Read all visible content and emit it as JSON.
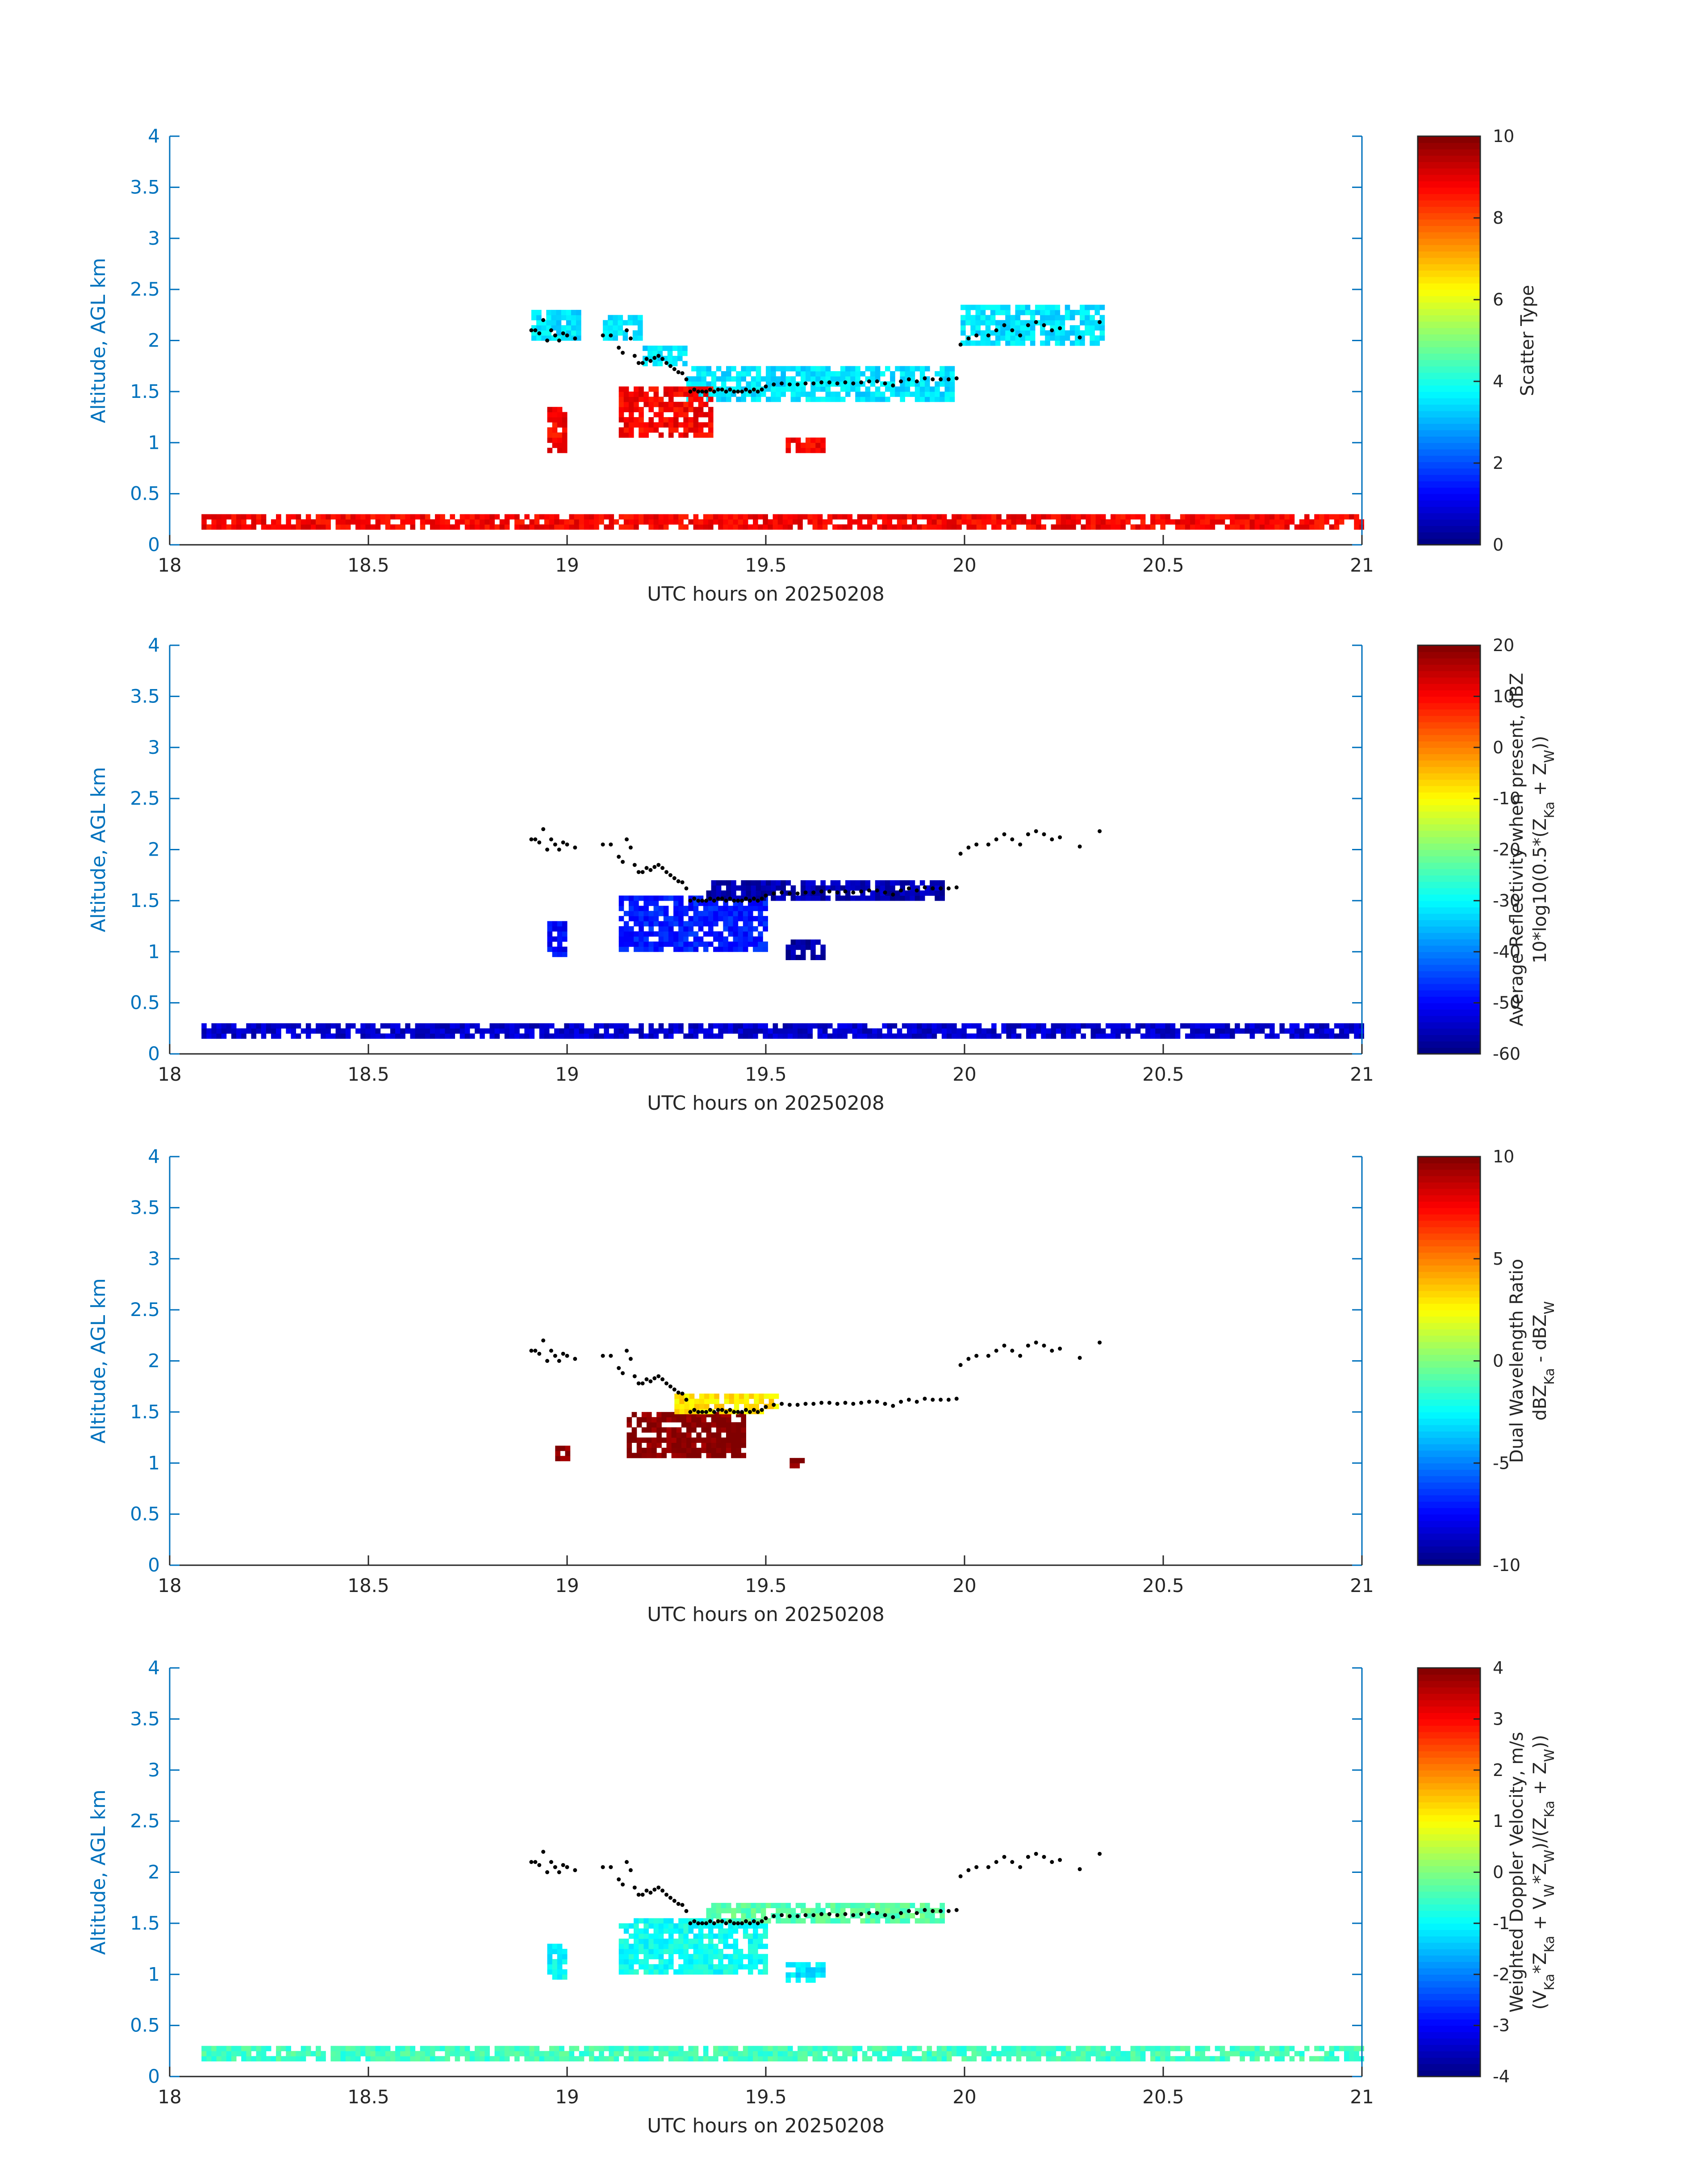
{
  "chart_data": [
    {
      "type": "heatmap",
      "title": "",
      "xlabel": "UTC hours on 20250208",
      "ylabel": "Altitude, AGL km",
      "xlim": [
        18,
        21
      ],
      "ylim": [
        0,
        4
      ],
      "xticks": [
        "18",
        "18.5",
        "19",
        "19.5",
        "20",
        "20.5",
        "21"
      ],
      "yticks": [
        "0",
        "0.5",
        "1",
        "1.5",
        "2",
        "2.5",
        "3",
        "3.5",
        "4"
      ],
      "colorbar": {
        "label_parts": [
          "Scatter Type"
        ],
        "range": [
          0,
          10
        ],
        "ticks": [
          "0",
          "2",
          "4",
          "6",
          "8",
          "10"
        ]
      },
      "colors": {
        "cloud": "#1ff2d6",
        "rain": "#ff4a00",
        "dots": "#000000"
      },
      "regions": [
        {
          "value": 3.5,
          "x_range": [
            18.91,
            19.03
          ],
          "y_range": [
            2.0,
            2.3
          ]
        },
        {
          "value": 3.5,
          "x_range": [
            19.09,
            19.19
          ],
          "y_range": [
            2.0,
            2.25
          ]
        },
        {
          "value": 3.5,
          "x_range": [
            19.19,
            19.3
          ],
          "y_range": [
            1.75,
            1.95
          ]
        },
        {
          "value": 3.5,
          "x_range": [
            19.3,
            19.97
          ],
          "y_range": [
            1.4,
            1.75
          ]
        },
        {
          "value": 3.5,
          "x_range": [
            19.99,
            20.35
          ],
          "y_range": [
            1.95,
            2.35
          ]
        },
        {
          "value": 8.8,
          "x_range": [
            18.95,
            19.0
          ],
          "y_range": [
            0.9,
            1.35
          ]
        },
        {
          "value": 8.8,
          "x_range": [
            19.13,
            19.36
          ],
          "y_range": [
            1.05,
            1.55
          ]
        },
        {
          "value": 8.8,
          "x_range": [
            19.55,
            19.65
          ],
          "y_range": [
            0.9,
            1.05
          ]
        },
        {
          "value": 8.8,
          "x_range": [
            18.08,
            21.0
          ],
          "y_range": [
            0.15,
            0.3
          ]
        }
      ]
    },
    {
      "type": "heatmap",
      "title": "",
      "xlabel": "UTC hours on 20250208",
      "ylabel": "Altitude, AGL km",
      "xlim": [
        18,
        21
      ],
      "ylim": [
        0,
        4
      ],
      "xticks": [
        "18",
        "18.5",
        "19",
        "19.5",
        "20",
        "20.5",
        "21"
      ],
      "yticks": [
        "0",
        "0.5",
        "1",
        "1.5",
        "2",
        "2.5",
        "3",
        "3.5",
        "4"
      ],
      "colorbar": {
        "label_parts": [
          "Average Reflectivity when present, dBZ",
          "10*log10(0.5*(Z",
          "Ka",
          " + Z",
          "W",
          "))"
        ],
        "range": [
          -60,
          20
        ],
        "ticks": [
          "-60",
          "-50",
          "-40",
          "-30",
          "-20",
          "-10",
          "0",
          "10",
          "20"
        ]
      },
      "regions": [
        {
          "value": -50,
          "x_range": [
            18.95,
            19.0
          ],
          "y_range": [
            0.95,
            1.3
          ]
        },
        {
          "value": -48,
          "x_range": [
            19.13,
            19.5
          ],
          "y_range": [
            1.0,
            1.55
          ]
        },
        {
          "value": -56,
          "x_range": [
            19.35,
            19.95
          ],
          "y_range": [
            1.5,
            1.7
          ]
        },
        {
          "value": -57,
          "x_range": [
            19.55,
            19.65
          ],
          "y_range": [
            0.92,
            1.1
          ]
        },
        {
          "value": -54,
          "x_range": [
            18.08,
            21.0
          ],
          "y_range": [
            0.15,
            0.3
          ]
        }
      ]
    },
    {
      "type": "heatmap",
      "title": "",
      "xlabel": "UTC hours on 20250208",
      "ylabel": "Altitude, AGL km",
      "xlim": [
        18,
        21
      ],
      "ylim": [
        0,
        4
      ],
      "xticks": [
        "18",
        "18.5",
        "19",
        "19.5",
        "20",
        "20.5",
        "21"
      ],
      "yticks": [
        "0",
        "0.5",
        "1",
        "1.5",
        "2",
        "2.5",
        "3",
        "3.5",
        "4"
      ],
      "colorbar": {
        "label_parts": [
          "Dual Wavelength Ratio",
          "dBZ",
          "Ka",
          " - dBZ",
          "W"
        ],
        "range": [
          -10,
          10
        ],
        "ticks": [
          "-10",
          "-5",
          "0",
          "5",
          "10"
        ]
      },
      "regions": [
        {
          "value": 10,
          "x_range": [
            19.15,
            19.44
          ],
          "y_range": [
            1.05,
            1.5
          ]
        },
        {
          "value": 3,
          "x_range": [
            19.27,
            19.53
          ],
          "y_range": [
            1.48,
            1.65
          ]
        },
        {
          "value": 10,
          "x_range": [
            18.97,
            19.0
          ],
          "y_range": [
            1.02,
            1.13
          ]
        },
        {
          "value": 10,
          "x_range": [
            19.56,
            19.59
          ],
          "y_range": [
            0.95,
            1.02
          ]
        }
      ]
    },
    {
      "type": "heatmap",
      "title": "",
      "xlabel": "UTC hours on 20250208",
      "ylabel": "Altitude, AGL km",
      "xlim": [
        18,
        21
      ],
      "ylim": [
        0,
        4
      ],
      "xticks": [
        "18",
        "18.5",
        "19",
        "19.5",
        "20",
        "20.5",
        "21"
      ],
      "yticks": [
        "0",
        "0.5",
        "1",
        "1.5",
        "2",
        "2.5",
        "3",
        "3.5",
        "4"
      ],
      "colorbar": {
        "label_parts": [
          "Weighted Doppler Velocity, m/s",
          "(V",
          "Ka",
          "*Z",
          "Ka",
          " + V",
          "W",
          "*Z",
          "W",
          ")/(Z",
          "Ka",
          " + Z",
          "W",
          "))"
        ],
        "range": [
          -4,
          4
        ],
        "ticks": [
          "-4",
          "-3",
          "-2",
          "-1",
          "0",
          "1",
          "2",
          "3",
          "4"
        ]
      },
      "regions": [
        {
          "value": -1.0,
          "x_range": [
            18.95,
            19.0
          ],
          "y_range": [
            0.95,
            1.3
          ]
        },
        {
          "value": -0.9,
          "x_range": [
            19.13,
            19.5
          ],
          "y_range": [
            1.0,
            1.55
          ]
        },
        {
          "value": -0.3,
          "x_range": [
            19.35,
            19.95
          ],
          "y_range": [
            1.5,
            1.7
          ]
        },
        {
          "value": -1.2,
          "x_range": [
            19.55,
            19.65
          ],
          "y_range": [
            0.92,
            1.1
          ]
        },
        {
          "value": -0.5,
          "x_range": [
            18.08,
            21.0
          ],
          "y_range": [
            0.15,
            0.3
          ]
        }
      ]
    }
  ],
  "overlay_points": {
    "x": [
      18.91,
      18.92,
      18.93,
      18.94,
      18.95,
      18.96,
      18.97,
      18.98,
      18.99,
      19.0,
      19.02,
      19.09,
      19.11,
      19.13,
      19.14,
      19.15,
      19.16,
      19.17,
      19.18,
      19.19,
      19.2,
      19.21,
      19.22,
      19.23,
      19.24,
      19.25,
      19.26,
      19.27,
      19.28,
      19.29,
      19.3,
      19.31,
      19.32,
      19.33,
      19.34,
      19.35,
      19.36,
      19.37,
      19.38,
      19.39,
      19.4,
      19.41,
      19.42,
      19.43,
      19.44,
      19.45,
      19.46,
      19.47,
      19.48,
      19.49,
      19.5,
      19.52,
      19.54,
      19.56,
      19.58,
      19.6,
      19.62,
      19.64,
      19.66,
      19.68,
      19.7,
      19.72,
      19.74,
      19.76,
      19.78,
      19.8,
      19.82,
      19.84,
      19.86,
      19.88,
      19.9,
      19.92,
      19.94,
      19.96,
      19.98,
      19.99,
      20.01,
      20.03,
      20.06,
      20.08,
      20.1,
      20.12,
      20.14,
      20.16,
      20.18,
      20.2,
      20.22,
      20.24,
      20.29,
      20.34
    ],
    "y": [
      2.1,
      2.1,
      2.07,
      2.2,
      2.0,
      2.1,
      2.05,
      2.0,
      2.07,
      2.05,
      2.02,
      2.05,
      2.05,
      1.93,
      1.88,
      2.1,
      2.02,
      1.85,
      1.78,
      1.78,
      1.82,
      1.8,
      1.83,
      1.85,
      1.82,
      1.78,
      1.75,
      1.72,
      1.69,
      1.68,
      1.62,
      1.5,
      1.52,
      1.5,
      1.5,
      1.5,
      1.52,
      1.5,
      1.52,
      1.52,
      1.5,
      1.52,
      1.5,
      1.5,
      1.5,
      1.52,
      1.5,
      1.52,
      1.5,
      1.52,
      1.55,
      1.57,
      1.58,
      1.57,
      1.57,
      1.58,
      1.58,
      1.59,
      1.59,
      1.58,
      1.59,
      1.58,
      1.59,
      1.6,
      1.6,
      1.58,
      1.56,
      1.6,
      1.62,
      1.6,
      1.63,
      1.62,
      1.62,
      1.62,
      1.63,
      1.96,
      2.02,
      2.05,
      2.05,
      2.1,
      2.15,
      2.1,
      2.05,
      2.15,
      2.18,
      2.15,
      2.1,
      2.12,
      2.03,
      2.18
    ]
  }
}
